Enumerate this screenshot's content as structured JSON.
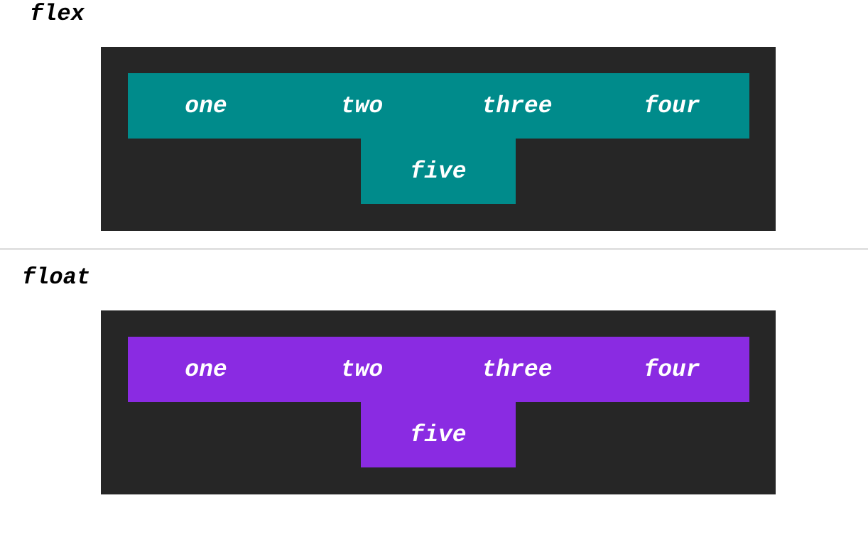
{
  "sections": {
    "flex": {
      "title": "flex",
      "accent_color": "#008b8b",
      "items": [
        "one",
        "two",
        "three",
        "four",
        "five"
      ]
    },
    "float": {
      "title": "float",
      "accent_color": "#8a2be2",
      "items": [
        "one",
        "two",
        "three",
        "four",
        "five"
      ]
    }
  },
  "colors": {
    "page_background": "#ffffff",
    "container_background": "#262626",
    "item_text": "#ffffff",
    "divider": "#9a9a9a"
  }
}
